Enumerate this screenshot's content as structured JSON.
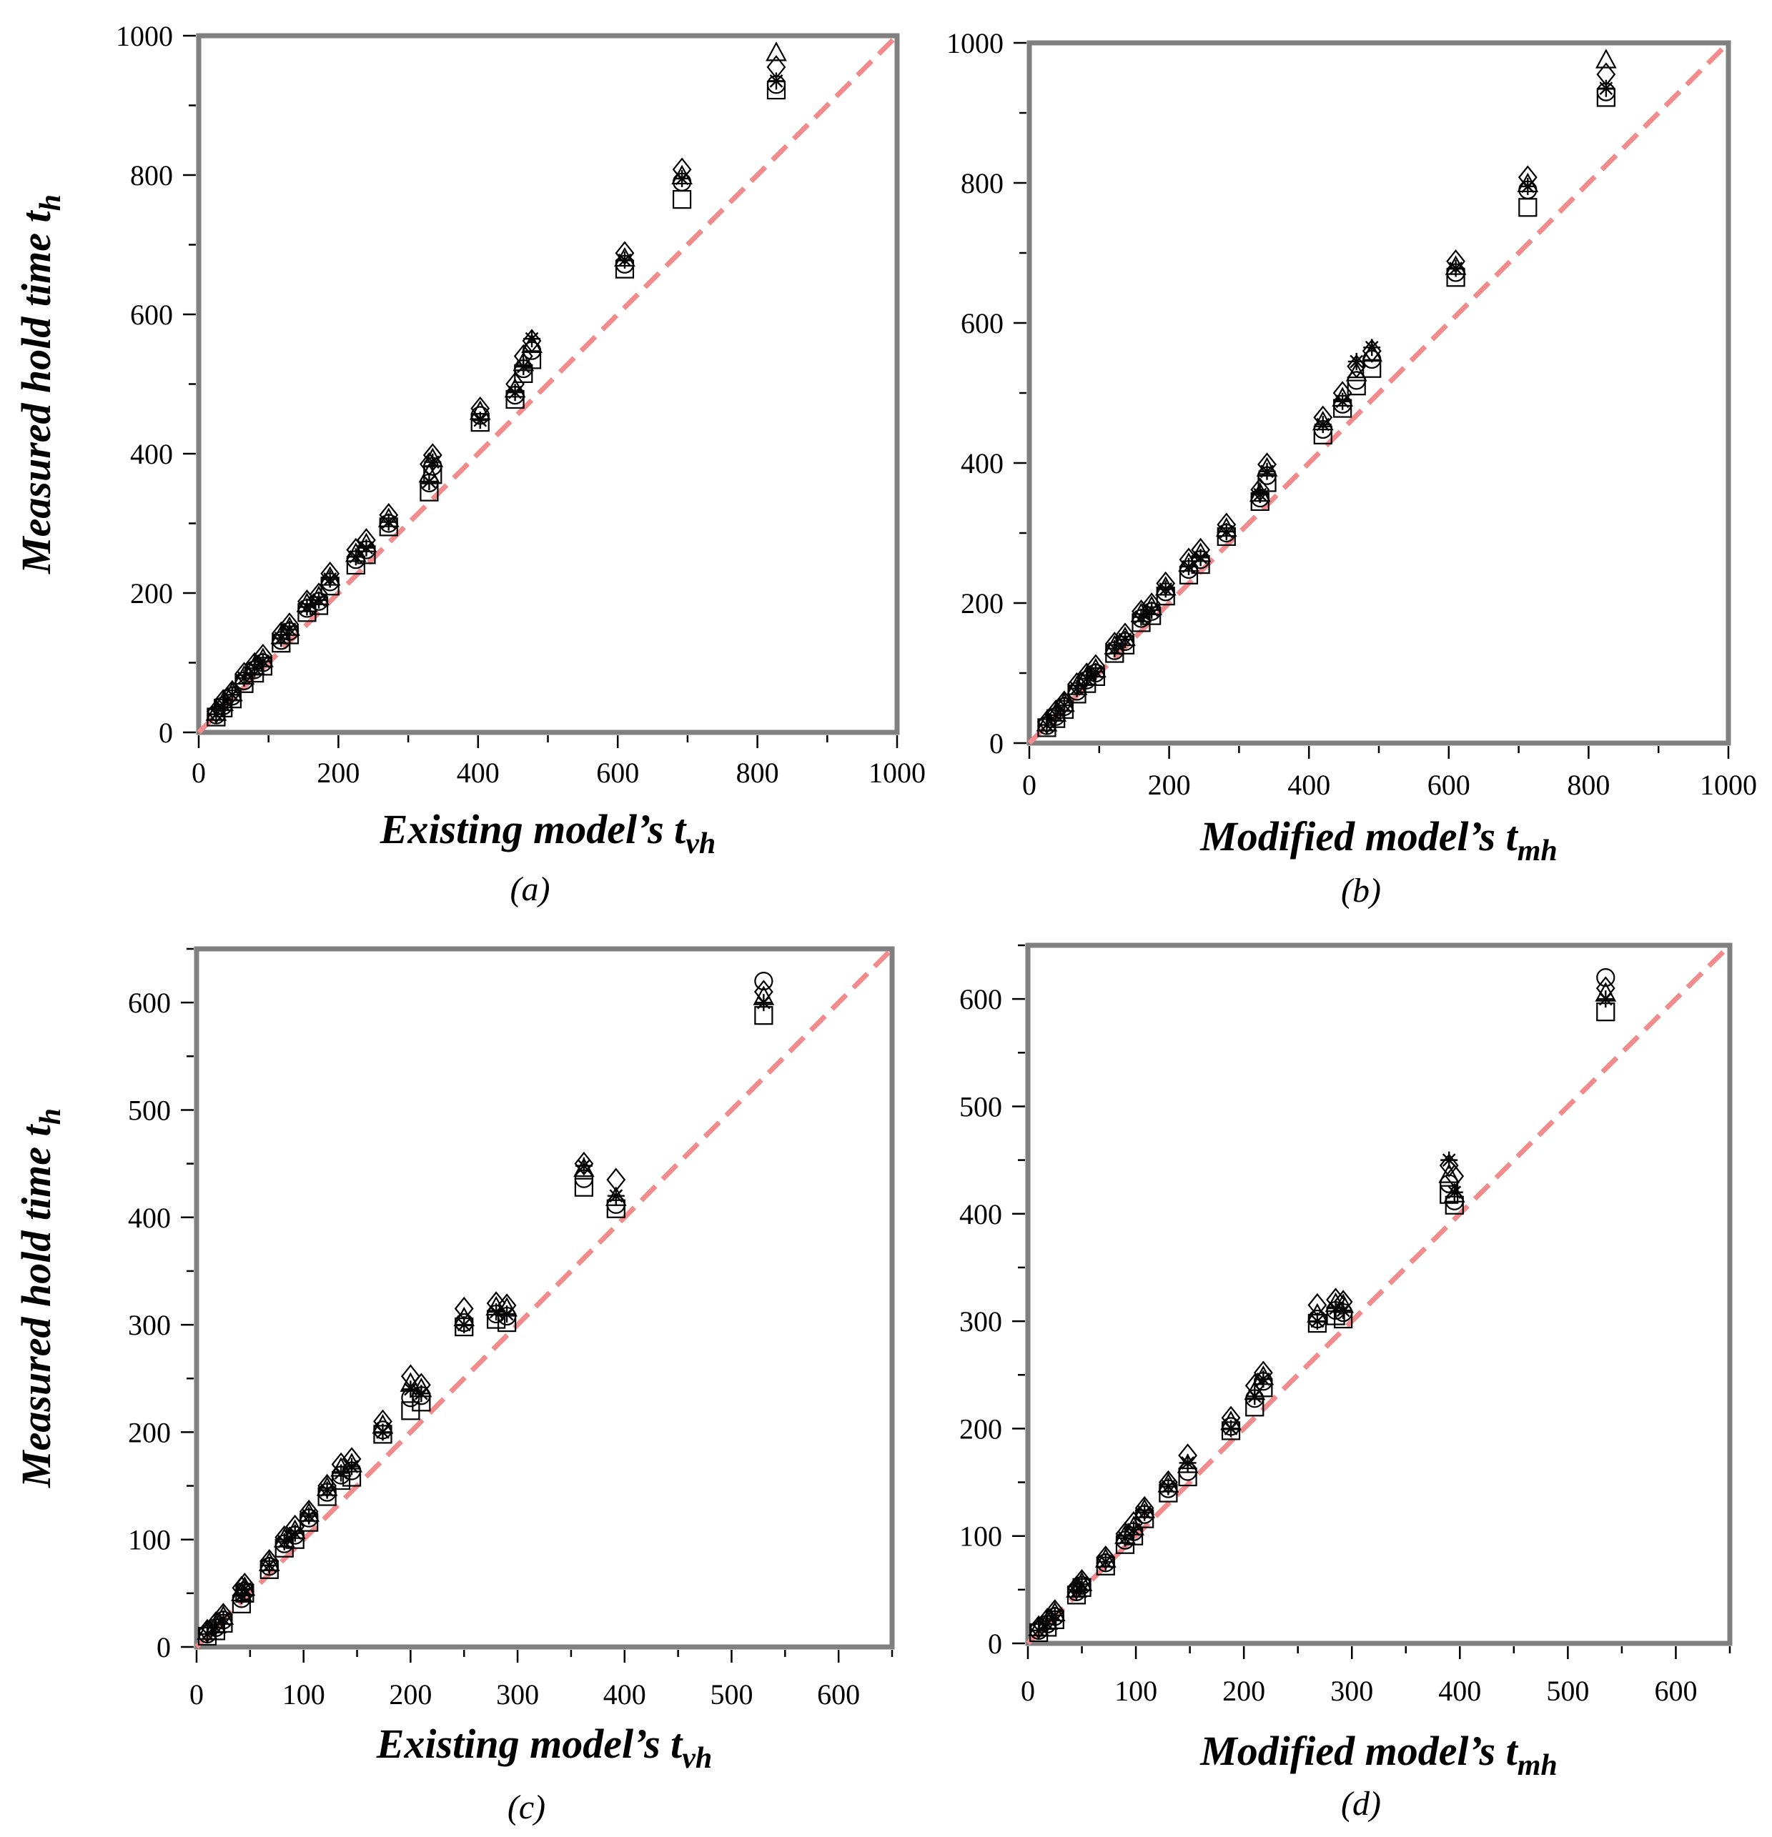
{
  "figure": {
    "marker_color": "#000000",
    "frame_color": "#808080",
    "reference_line_color": "#f28b8b",
    "marker_shapes": [
      "square-icon",
      "circle-icon",
      "triangle-icon",
      "diamond-icon",
      "asterisk-icon"
    ]
  },
  "chart_data": [
    {
      "id": "a",
      "type": "scatter",
      "caption": "(a)",
      "ylabel": "Measured hold time t",
      "ylabel_sub": "h",
      "xlabel": "Existing model’s t",
      "xlabel_sub": "vh",
      "xlim": [
        0,
        1000
      ],
      "ylim": [
        0,
        1000
      ],
      "xticks": [
        0,
        200,
        400,
        600,
        800,
        1000
      ],
      "yticks": [
        0,
        200,
        400,
        600,
        800,
        1000
      ],
      "reference_line": "y = x (dashed)",
      "groups": [
        {
          "x": 25,
          "y": [
            22,
            25,
            28,
            30,
            26
          ]
        },
        {
          "x": 35,
          "y": [
            35,
            38,
            42,
            45,
            40
          ]
        },
        {
          "x": 48,
          "y": [
            48,
            52,
            56,
            58,
            54
          ]
        },
        {
          "x": 65,
          "y": [
            70,
            74,
            80,
            84,
            78
          ]
        },
        {
          "x": 80,
          "y": [
            85,
            90,
            94,
            98,
            92
          ]
        },
        {
          "x": 92,
          "y": [
            95,
            100,
            105,
            110,
            102
          ]
        },
        {
          "x": 118,
          "y": [
            128,
            132,
            138,
            142,
            135
          ]
        },
        {
          "x": 130,
          "y": [
            140,
            145,
            150,
            155,
            148
          ]
        },
        {
          "x": 155,
          "y": [
            172,
            178,
            184,
            188,
            180
          ]
        },
        {
          "x": 172,
          "y": [
            182,
            188,
            194,
            198,
            190
          ]
        },
        {
          "x": 188,
          "y": [
            210,
            216,
            222,
            228,
            220
          ]
        },
        {
          "x": 225,
          "y": [
            240,
            248,
            256,
            262,
            252
          ]
        },
        {
          "x": 240,
          "y": [
            255,
            262,
            270,
            276,
            265
          ]
        },
        {
          "x": 272,
          "y": [
            295,
            300,
            306,
            312,
            302
          ]
        },
        {
          "x": 330,
          "y": [
            345,
            358,
            370,
            385,
            360
          ]
        },
        {
          "x": 335,
          "y": [
            370,
            382,
            392,
            398,
            388
          ]
        },
        {
          "x": 403,
          "y": [
            445,
            455,
            460,
            465,
            448
          ]
        },
        {
          "x": 453,
          "y": [
            478,
            484,
            492,
            500,
            488
          ]
        },
        {
          "x": 465,
          "y": [
            515,
            522,
            530,
            540,
            525
          ]
        },
        {
          "x": 477,
          "y": [
            535,
            548,
            556,
            562,
            565
          ]
        },
        {
          "x": 610,
          "y": [
            665,
            672,
            680,
            688,
            678
          ]
        },
        {
          "x": 692,
          "y": [
            765,
            790,
            798,
            808,
            795
          ]
        },
        {
          "x": 827,
          "y": [
            922,
            930,
            975,
            955,
            935
          ]
        }
      ]
    },
    {
      "id": "b",
      "type": "scatter",
      "caption": "(b)",
      "ylabel": "",
      "ylabel_sub": "",
      "xlabel": "Modified model’s t",
      "xlabel_sub": "mh",
      "xlim": [
        0,
        1000
      ],
      "ylim": [
        0,
        1000
      ],
      "xticks": [
        0,
        200,
        400,
        600,
        800,
        1000
      ],
      "yticks": [
        0,
        200,
        400,
        600,
        800,
        1000
      ],
      "reference_line": "y = x (dashed)",
      "groups": [
        {
          "x": 25,
          "y": [
            22,
            25,
            28,
            30,
            26
          ]
        },
        {
          "x": 38,
          "y": [
            35,
            38,
            42,
            45,
            40
          ]
        },
        {
          "x": 50,
          "y": [
            48,
            52,
            56,
            58,
            54
          ]
        },
        {
          "x": 68,
          "y": [
            70,
            74,
            80,
            84,
            78
          ]
        },
        {
          "x": 82,
          "y": [
            85,
            90,
            94,
            98,
            92
          ]
        },
        {
          "x": 95,
          "y": [
            95,
            100,
            105,
            110,
            102
          ]
        },
        {
          "x": 122,
          "y": [
            128,
            132,
            138,
            142,
            135
          ]
        },
        {
          "x": 137,
          "y": [
            140,
            145,
            150,
            155,
            148
          ]
        },
        {
          "x": 160,
          "y": [
            172,
            178,
            184,
            188,
            180
          ]
        },
        {
          "x": 175,
          "y": [
            182,
            188,
            194,
            198,
            190
          ]
        },
        {
          "x": 195,
          "y": [
            210,
            216,
            222,
            228,
            220
          ]
        },
        {
          "x": 228,
          "y": [
            240,
            248,
            256,
            262,
            252
          ]
        },
        {
          "x": 245,
          "y": [
            255,
            262,
            270,
            276,
            265
          ]
        },
        {
          "x": 282,
          "y": [
            295,
            300,
            306,
            312,
            302
          ]
        },
        {
          "x": 330,
          "y": [
            345,
            350,
            356,
            362,
            355
          ]
        },
        {
          "x": 340,
          "y": [
            372,
            382,
            392,
            398,
            388
          ]
        },
        {
          "x": 420,
          "y": [
            440,
            448,
            458,
            465,
            455
          ]
        },
        {
          "x": 448,
          "y": [
            478,
            484,
            492,
            500,
            488
          ]
        },
        {
          "x": 468,
          "y": [
            510,
            518,
            528,
            538,
            545
          ]
        },
        {
          "x": 490,
          "y": [
            535,
            548,
            556,
            560,
            565
          ]
        },
        {
          "x": 610,
          "y": [
            665,
            672,
            680,
            688,
            678
          ]
        },
        {
          "x": 713,
          "y": [
            765,
            790,
            798,
            808,
            795
          ]
        },
        {
          "x": 825,
          "y": [
            922,
            930,
            975,
            955,
            935
          ]
        }
      ]
    },
    {
      "id": "c",
      "type": "scatter",
      "caption": "(c)",
      "ylabel": "Measured hold time t",
      "ylabel_sub": "h",
      "xlabel": "Existing model’s t",
      "xlabel_sub": "vh",
      "xlim": [
        0,
        650
      ],
      "ylim": [
        0,
        650
      ],
      "xticks": [
        0,
        100,
        200,
        300,
        400,
        500,
        600
      ],
      "yticks": [
        0,
        100,
        200,
        300,
        400,
        500,
        600
      ],
      "reference_line": "y = x (dashed)",
      "groups": [
        {
          "x": 10,
          "y": [
            10,
            12,
            14,
            15,
            12
          ]
        },
        {
          "x": 18,
          "y": [
            15,
            18,
            20,
            22,
            18
          ]
        },
        {
          "x": 25,
          "y": [
            22,
            25,
            28,
            30,
            26
          ]
        },
        {
          "x": 42,
          "y": [
            40,
            45,
            50,
            55,
            48
          ]
        },
        {
          "x": 45,
          "y": [
            50,
            52,
            55,
            58,
            54
          ]
        },
        {
          "x": 68,
          "y": [
            72,
            75,
            78,
            80,
            76
          ]
        },
        {
          "x": 82,
          "y": [
            92,
            96,
            100,
            102,
            98
          ]
        },
        {
          "x": 92,
          "y": [
            100,
            104,
            108,
            112,
            106
          ]
        },
        {
          "x": 105,
          "y": [
            116,
            120,
            124,
            126,
            122
          ]
        },
        {
          "x": 122,
          "y": [
            140,
            144,
            148,
            150,
            146
          ]
        },
        {
          "x": 135,
          "y": [
            155,
            160,
            166,
            170,
            162
          ]
        },
        {
          "x": 145,
          "y": [
            158,
            164,
            170,
            175,
            168
          ]
        },
        {
          "x": 174,
          "y": [
            198,
            202,
            206,
            210,
            200
          ]
        },
        {
          "x": 200,
          "y": [
            220,
            232,
            245,
            252,
            240
          ]
        },
        {
          "x": 210,
          "y": [
            228,
            234,
            240,
            244,
            236
          ]
        },
        {
          "x": 250,
          "y": [
            298,
            302,
            306,
            315,
            300
          ]
        },
        {
          "x": 280,
          "y": [
            305,
            310,
            316,
            320,
            312
          ]
        },
        {
          "x": 290,
          "y": [
            302,
            308,
            315,
            318,
            310
          ]
        },
        {
          "x": 362,
          "y": [
            428,
            436,
            445,
            450,
            448
          ]
        },
        {
          "x": 392,
          "y": [
            408,
            412,
            418,
            435,
            420
          ]
        },
        {
          "x": 530,
          "y": [
            588,
            620,
            605,
            610,
            600
          ]
        }
      ]
    },
    {
      "id": "d",
      "type": "scatter",
      "caption": "(d)",
      "ylabel": "",
      "ylabel_sub": "",
      "xlabel": "Modified model’s t",
      "xlabel_sub": "mh",
      "xlim": [
        0,
        650
      ],
      "ylim": [
        0,
        650
      ],
      "xticks": [
        0,
        100,
        200,
        300,
        400,
        500,
        600
      ],
      "yticks": [
        0,
        100,
        200,
        300,
        400,
        500,
        600
      ],
      "reference_line": "y = x (dashed)",
      "groups": [
        {
          "x": 10,
          "y": [
            10,
            12,
            14,
            15,
            12
          ]
        },
        {
          "x": 18,
          "y": [
            15,
            18,
            20,
            22,
            18
          ]
        },
        {
          "x": 25,
          "y": [
            22,
            25,
            28,
            30,
            26
          ]
        },
        {
          "x": 45,
          "y": [
            45,
            48,
            50,
            52,
            48
          ]
        },
        {
          "x": 50,
          "y": [
            52,
            54,
            56,
            58,
            55
          ]
        },
        {
          "x": 72,
          "y": [
            72,
            75,
            78,
            80,
            76
          ]
        },
        {
          "x": 90,
          "y": [
            92,
            96,
            100,
            102,
            98
          ]
        },
        {
          "x": 98,
          "y": [
            100,
            104,
            108,
            112,
            106
          ]
        },
        {
          "x": 108,
          "y": [
            116,
            120,
            124,
            126,
            122
          ]
        },
        {
          "x": 130,
          "y": [
            140,
            144,
            148,
            150,
            146
          ]
        },
        {
          "x": 148,
          "y": [
            155,
            160,
            166,
            175,
            168
          ]
        },
        {
          "x": 188,
          "y": [
            198,
            202,
            206,
            210,
            200
          ]
        },
        {
          "x": 210,
          "y": [
            220,
            228,
            234,
            240,
            230
          ]
        },
        {
          "x": 218,
          "y": [
            238,
            244,
            248,
            252,
            246
          ]
        },
        {
          "x": 268,
          "y": [
            298,
            302,
            306,
            315,
            300
          ]
        },
        {
          "x": 285,
          "y": [
            305,
            310,
            316,
            320,
            312
          ]
        },
        {
          "x": 292,
          "y": [
            302,
            308,
            315,
            318,
            310
          ]
        },
        {
          "x": 390,
          "y": [
            418,
            428,
            436,
            445,
            450
          ]
        },
        {
          "x": 395,
          "y": [
            408,
            412,
            418,
            435,
            420
          ]
        },
        {
          "x": 535,
          "y": [
            588,
            620,
            605,
            610,
            600
          ]
        }
      ]
    }
  ]
}
